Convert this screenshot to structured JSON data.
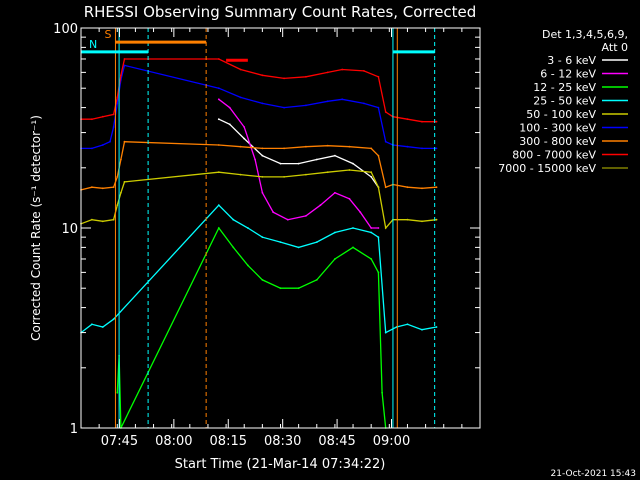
{
  "chart_data": {
    "type": "line",
    "title": "RHESSI Observing Summary Count Rates, Corrected",
    "xlabel": "Start Time (21-Mar-14 07:34:22)",
    "ylabel": "Corrected Count Rate (s⁻¹ detector⁻¹)",
    "xlim_minutes_after_start": [
      0,
      110
    ],
    "ylim": [
      1,
      100
    ],
    "yscale": "log",
    "x_tick_labels": [
      "07:45",
      "08:00",
      "08:15",
      "08:30",
      "08:45",
      "09:00"
    ],
    "y_tick_labels": [
      "1",
      "10",
      "100"
    ],
    "legend_header": [
      "Det 1,3,4,5,6,9,",
      "Att 0"
    ],
    "legend_position": "right",
    "timestamp": "21-Oct-2021 15:43",
    "series": [
      {
        "name": "3 - 6 keV",
        "color": "#ffffff",
        "x": [
          0,
          6,
          9,
          10,
          38,
          41,
          45,
          50,
          55,
          60,
          65,
          70,
          75,
          80,
          82
        ],
        "y": [
          null,
          null,
          null,
          null,
          35,
          33,
          28,
          23,
          21,
          21,
          22,
          23,
          21,
          18,
          16
        ]
      },
      {
        "name": "6 - 12 keV",
        "color": "#ff00ff",
        "x": [
          38,
          41,
          45,
          48,
          50,
          53,
          57,
          62,
          66,
          70,
          74,
          77,
          80,
          82
        ],
        "y": [
          44,
          40,
          32,
          22,
          15,
          12,
          11,
          11.5,
          13,
          15,
          14,
          12,
          10,
          10
        ]
      },
      {
        "name": "12 - 25 keV",
        "color": "#00ff00",
        "x": [
          0,
          9,
          10,
          10.5,
          11,
          38,
          42,
          46,
          50,
          55,
          60,
          65,
          70,
          75,
          80,
          82,
          83,
          84
        ],
        "y": [
          null,
          null,
          1.5,
          2.3,
          1,
          10,
          8,
          6.5,
          5.5,
          5,
          5,
          5.5,
          7,
          8,
          7,
          6,
          1.5,
          1
        ]
      },
      {
        "name": "25 - 50 keV",
        "color": "#00ffff",
        "x": [
          0,
          3,
          6,
          9,
          38,
          42,
          46,
          50,
          55,
          60,
          65,
          70,
          75,
          80,
          82,
          84,
          87,
          90,
          94,
          98
        ],
        "y": [
          3,
          3.3,
          3.2,
          3.5,
          13,
          11,
          10,
          9,
          8.5,
          8,
          8.5,
          9.5,
          10,
          9.5,
          9,
          3,
          3.2,
          3.3,
          3.1,
          3.2
        ]
      },
      {
        "name": "50 - 100 keV",
        "color": "#cccc00",
        "x": [
          0,
          3,
          6,
          9,
          10,
          11,
          12,
          38,
          44,
          50,
          56,
          62,
          68,
          74,
          80,
          82,
          84,
          86,
          90,
          94,
          98
        ],
        "y": [
          10.5,
          11,
          10.8,
          11,
          13,
          15,
          17,
          19,
          18.5,
          18,
          18,
          18.5,
          19,
          19.5,
          19,
          16,
          10,
          11,
          11,
          10.8,
          11
        ]
      },
      {
        "name": "100 - 300 keV",
        "color": "#0000ff",
        "x": [
          0,
          3,
          6,
          8,
          9,
          10,
          11,
          12,
          38,
          44,
          50,
          56,
          62,
          68,
          72,
          78,
          82,
          84,
          86,
          90,
          94,
          98
        ],
        "y": [
          25,
          25,
          26,
          27,
          32,
          42,
          55,
          65,
          50,
          45,
          42,
          40,
          41,
          43,
          44,
          42,
          40,
          27,
          26,
          25.5,
          25,
          25
        ]
      },
      {
        "name": "300 - 800 keV",
        "color": "#ff8000",
        "x": [
          0,
          3,
          6,
          9,
          10,
          11,
          12,
          38,
          44,
          50,
          56,
          62,
          68,
          74,
          80,
          82,
          84,
          86,
          90,
          94,
          98
        ],
        "y": [
          15.5,
          16,
          15.8,
          16,
          18,
          22,
          27,
          26,
          25.5,
          25,
          25,
          25.5,
          25.8,
          25.5,
          25,
          23,
          16,
          16.5,
          16,
          15.8,
          16
        ]
      },
      {
        "name": "800 - 7000 keV",
        "color": "#ff0000",
        "x": [
          0,
          3,
          6,
          9,
          10,
          11,
          12,
          38,
          44,
          50,
          56,
          62,
          68,
          72,
          78,
          82,
          84,
          86,
          90,
          94,
          98
        ],
        "y": [
          35,
          35,
          36,
          37,
          45,
          58,
          70,
          70,
          62,
          58,
          56,
          57,
          60,
          62,
          61,
          57,
          38,
          36,
          35,
          34,
          34
        ]
      },
      {
        "name": "7000 - 15000 keV",
        "color": "#808000",
        "x": [],
        "y": []
      }
    ],
    "overlay_segments": [
      {
        "label": "S",
        "color": "#ff8000",
        "x": [
          9.5,
          34.5
        ],
        "y": 85
      },
      {
        "label": "N",
        "color": "#00ffff",
        "x": [
          0,
          18.5
        ],
        "y": 76
      },
      {
        "label": "",
        "color": "#00ffff",
        "x": [
          86,
          97.5
        ],
        "y": 76
      },
      {
        "label": "",
        "color": "#ff0000",
        "x": [
          40,
          46
        ],
        "y": 69
      }
    ],
    "vertical_markers": [
      {
        "x": 9.5,
        "color": "#ff8000",
        "style": "solid"
      },
      {
        "x": 10.5,
        "color": "#00ffff",
        "style": "solid"
      },
      {
        "x": 18.5,
        "color": "#00ffff",
        "style": "dashed"
      },
      {
        "x": 34.5,
        "color": "#ff8000",
        "style": "dashed"
      },
      {
        "x": 86,
        "color": "#00ffff",
        "style": "solid"
      },
      {
        "x": 87.2,
        "color": "#ff8000",
        "style": "solid"
      },
      {
        "x": 97.5,
        "color": "#00ffff",
        "style": "dashed"
      }
    ]
  }
}
